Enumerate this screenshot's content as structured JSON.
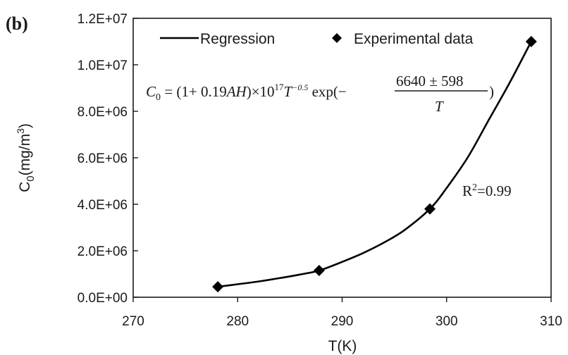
{
  "chart_data": {
    "type": "scatter",
    "panel_label": "(b)",
    "xlabel": "T(K)",
    "ylabel": {
      "base": "C",
      "sub": "0",
      "units_open": "(mg/m",
      "units_sup": "3",
      "units_close": ")"
    },
    "xlim": [
      270,
      310
    ],
    "ylim": [
      0,
      12000000
    ],
    "x_ticks": [
      270,
      280,
      290,
      300,
      310
    ],
    "y_ticks": [
      {
        "value": 0,
        "label": "0.0E+00"
      },
      {
        "value": 2000000,
        "label": "2.0E+06"
      },
      {
        "value": 4000000,
        "label": "4.0E+06"
      },
      {
        "value": 6000000,
        "label": "6.0E+06"
      },
      {
        "value": 8000000,
        "label": "8.0E+06"
      },
      {
        "value": 10000000,
        "label": "1.0E+07"
      },
      {
        "value": 12000000,
        "label": "1.2E+07"
      }
    ],
    "series": [
      {
        "name": "Regression",
        "kind": "line",
        "x": [
          278.1,
          280,
          282,
          284,
          286,
          287.8,
          290,
          292,
          294,
          296,
          298.4,
          300,
          302,
          304,
          306,
          308.1
        ],
        "y": [
          450000,
          560000,
          680000,
          820000,
          980000,
          1150000,
          1520000,
          1900000,
          2350000,
          2900000,
          3800000,
          4700000,
          6000000,
          7600000,
          9200000,
          11000000
        ]
      },
      {
        "name": "Experimental data",
        "kind": "scatter",
        "x": [
          278.1,
          287.8,
          298.4,
          308.1
        ],
        "y": [
          450000,
          1150000,
          3800000,
          11000000
        ]
      }
    ],
    "annotations": {
      "equation": {
        "lhs": "C",
        "lhs_sub": "0",
        "eq": " = (1+ 0.19",
        "ah": "AH",
        "times": ")×10",
        "exp17": "17",
        "T": "T",
        "expm": "−0.5",
        "expfn": " exp(−",
        "numerator": "6640 ± 598",
        "denominator": "T",
        "close": ")"
      },
      "r2": {
        "base": "R",
        "sup": "2",
        "rest": "=0.99"
      }
    },
    "legend_position": "top",
    "grid": false
  }
}
